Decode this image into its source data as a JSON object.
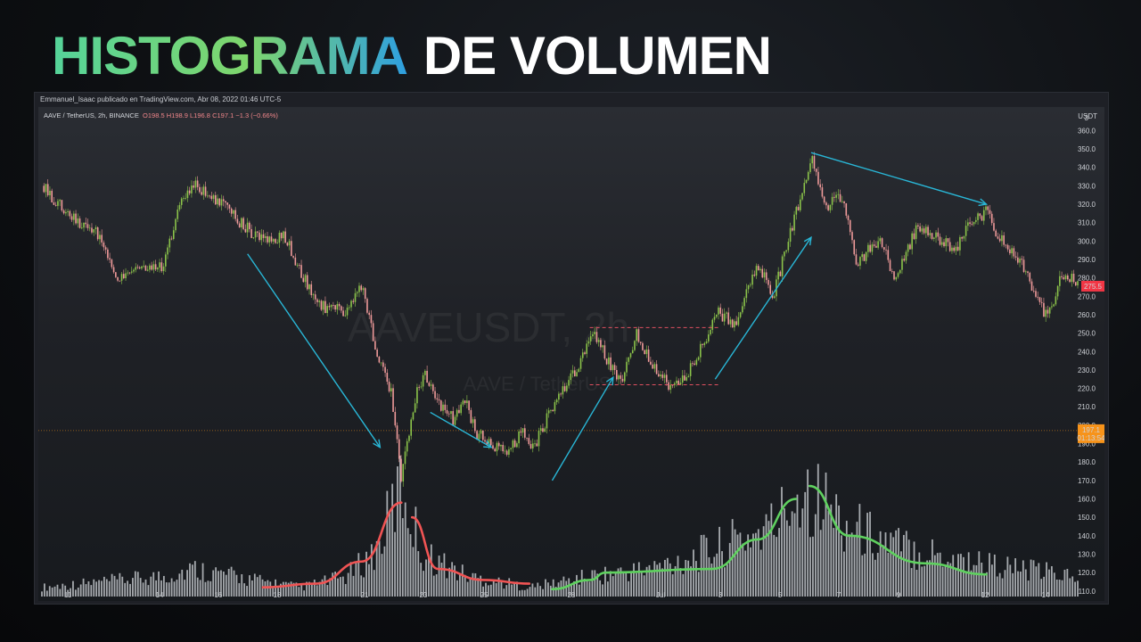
{
  "headline": {
    "part1": "HISTOGRAMA",
    "part2": "DE VOLUMEN"
  },
  "credit": "Emmanuel_Isaac publicado en TradingView.com, Abr 08, 2022 01:46 UTC-5",
  "legend": {
    "symbol": "AAVE / TetherUS, 2h, BINANCE",
    "open": "O198.5",
    "high": "H198.9",
    "low": "L196.8",
    "close": "C197.1",
    "change": "−1.3 (−0.66%)"
  },
  "currency": "USDT",
  "watermark": {
    "main": "AAVEUSDT, 2h",
    "sub": "AAVE / TetherUS"
  },
  "last_price": {
    "value": "275.5",
    "color": "#f23645"
  },
  "current_price": {
    "value": "197.1",
    "countdown": "01:13:54",
    "color": "#f7931a"
  },
  "colors": {
    "up": "#26a69a",
    "candle_up": "#8bc34a",
    "candle_down": "#ef9a9a",
    "arrow": "#29b6d6",
    "volume": "#c0c3c8",
    "curve_red": "#f05454",
    "curve_green": "#5fd15f",
    "rect": "#e05060"
  },
  "chart_data": {
    "type": "candlestick",
    "title": "",
    "ylabel": "USDT",
    "ylim": [
      107,
      366
    ],
    "y_ticks": [
      110,
      120,
      130,
      140,
      150,
      160,
      170,
      180,
      190,
      200,
      210,
      220,
      230,
      240,
      250,
      260,
      270,
      280,
      290,
      300,
      310,
      320,
      330,
      340,
      350,
      360
    ],
    "x_ticks": [
      "11",
      "14",
      "16",
      "18",
      "21",
      "23",
      "25",
      "28",
      "Jul",
      "3",
      "5",
      "7",
      "9",
      "12",
      "14"
    ],
    "price_path": [
      {
        "x": 0,
        "y": 330
      },
      {
        "x": 2,
        "y": 312
      },
      {
        "x": 3.5,
        "y": 305
      },
      {
        "x": 5,
        "y": 280
      },
      {
        "x": 6.5,
        "y": 288
      },
      {
        "x": 8,
        "y": 285
      },
      {
        "x": 9,
        "y": 320
      },
      {
        "x": 10,
        "y": 330
      },
      {
        "x": 11.5,
        "y": 322
      },
      {
        "x": 13,
        "y": 310
      },
      {
        "x": 14.5,
        "y": 300
      },
      {
        "x": 16,
        "y": 302
      },
      {
        "x": 18,
        "y": 265
      },
      {
        "x": 20,
        "y": 262
      },
      {
        "x": 21,
        "y": 275
      },
      {
        "x": 22,
        "y": 240
      },
      {
        "x": 23,
        "y": 215
      },
      {
        "x": 23.6,
        "y": 170
      },
      {
        "x": 24.5,
        "y": 215
      },
      {
        "x": 25.2,
        "y": 228
      },
      {
        "x": 26,
        "y": 212
      },
      {
        "x": 27,
        "y": 203
      },
      {
        "x": 27.7,
        "y": 215
      },
      {
        "x": 28.5,
        "y": 196
      },
      {
        "x": 29.5,
        "y": 190
      },
      {
        "x": 30.5,
        "y": 185
      },
      {
        "x": 31.5,
        "y": 196
      },
      {
        "x": 32.3,
        "y": 188
      },
      {
        "x": 33.5,
        "y": 210
      },
      {
        "x": 35,
        "y": 230
      },
      {
        "x": 36.2,
        "y": 250
      },
      {
        "x": 37.3,
        "y": 232
      },
      {
        "x": 38,
        "y": 222
      },
      {
        "x": 39,
        "y": 250
      },
      {
        "x": 40,
        "y": 235
      },
      {
        "x": 41.2,
        "y": 220
      },
      {
        "x": 42.5,
        "y": 230
      },
      {
        "x": 43.5,
        "y": 245
      },
      {
        "x": 44.3,
        "y": 262
      },
      {
        "x": 45.5,
        "y": 255
      },
      {
        "x": 47,
        "y": 288
      },
      {
        "x": 48,
        "y": 270
      },
      {
        "x": 49,
        "y": 300
      },
      {
        "x": 50.5,
        "y": 345
      },
      {
        "x": 51.5,
        "y": 318
      },
      {
        "x": 52.5,
        "y": 325
      },
      {
        "x": 53.5,
        "y": 288
      },
      {
        "x": 55,
        "y": 302
      },
      {
        "x": 56,
        "y": 280
      },
      {
        "x": 57.5,
        "y": 308
      },
      {
        "x": 59,
        "y": 300
      },
      {
        "x": 60,
        "y": 295
      },
      {
        "x": 61,
        "y": 310
      },
      {
        "x": 62,
        "y": 316
      },
      {
        "x": 63,
        "y": 300
      },
      {
        "x": 64.5,
        "y": 285
      },
      {
        "x": 66,
        "y": 258
      },
      {
        "x": 67,
        "y": 282
      },
      {
        "x": 68,
        "y": 278
      }
    ],
    "volume_profile": [
      {
        "x": 0,
        "v": 112
      },
      {
        "x": 8,
        "v": 118
      },
      {
        "x": 10,
        "v": 122
      },
      {
        "x": 14,
        "v": 116
      },
      {
        "x": 17,
        "v": 112
      },
      {
        "x": 20,
        "v": 118
      },
      {
        "x": 22,
        "v": 132
      },
      {
        "x": 23.6,
        "v": 168
      },
      {
        "x": 25,
        "v": 130
      },
      {
        "x": 28,
        "v": 118
      },
      {
        "x": 32,
        "v": 112
      },
      {
        "x": 36,
        "v": 118
      },
      {
        "x": 40,
        "v": 122
      },
      {
        "x": 44,
        "v": 132
      },
      {
        "x": 48,
        "v": 145
      },
      {
        "x": 50,
        "v": 168
      },
      {
        "x": 53,
        "v": 145
      },
      {
        "x": 56,
        "v": 135
      },
      {
        "x": 60,
        "v": 128
      },
      {
        "x": 64,
        "v": 122
      },
      {
        "x": 68,
        "v": 118
      }
    ],
    "trend_arrows": [
      {
        "from": [
          13.5,
          293
        ],
        "to": [
          22.2,
          188
        ]
      },
      {
        "from": [
          25.5,
          207
        ],
        "to": [
          29.5,
          188
        ]
      },
      {
        "from": [
          33.5,
          170
        ],
        "to": [
          37.5,
          226
        ]
      },
      {
        "from": [
          44.2,
          225
        ],
        "to": [
          50.5,
          302
        ]
      },
      {
        "from": [
          50.5,
          348
        ],
        "to": [
          62,
          320
        ]
      }
    ],
    "range_box": {
      "x": [
        36.2,
        44.3
      ],
      "y": [
        222,
        253
      ]
    },
    "volume_curves": [
      {
        "color": "red",
        "points": [
          [
            14.5,
            112
          ],
          [
            18,
            114
          ],
          [
            21,
            126
          ],
          [
            23.6,
            158
          ]
        ]
      },
      {
        "color": "red",
        "points": [
          [
            24.3,
            150
          ],
          [
            26,
            122
          ],
          [
            29,
            116
          ],
          [
            32,
            114
          ]
        ]
      },
      {
        "color": "green",
        "points": [
          [
            33.5,
            111
          ],
          [
            36,
            116
          ],
          [
            37,
            120
          ],
          [
            44,
            122
          ]
        ]
      },
      {
        "color": "green",
        "points": [
          [
            44,
            122
          ],
          [
            47,
            138
          ],
          [
            49.5,
            160
          ]
        ]
      },
      {
        "color": "green",
        "points": [
          [
            50.4,
            167
          ],
          [
            53,
            140
          ],
          [
            58,
            125
          ],
          [
            62,
            119
          ]
        ]
      }
    ]
  }
}
